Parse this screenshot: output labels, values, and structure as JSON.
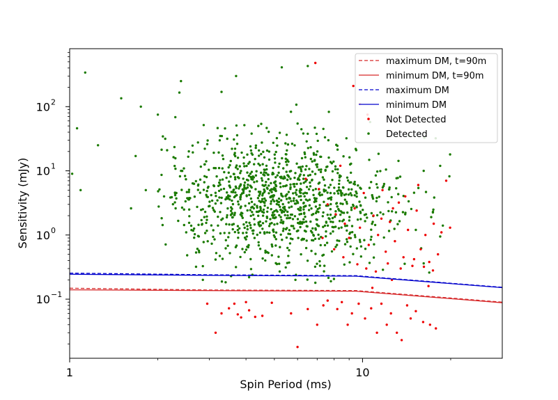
{
  "chart_data": {
    "type": "scatter",
    "xlabel": "Spin Period (ms)",
    "ylabel": "Sensitivity (mJy)",
    "xscale": "log",
    "yscale": "log",
    "xlim": [
      1,
      30
    ],
    "ylim": [
      0.012,
      800
    ],
    "xticks": [
      {
        "value": 1,
        "label": "1"
      },
      {
        "value": 10,
        "label": "10"
      }
    ],
    "yticks": [
      {
        "value": 0.1,
        "base": "10",
        "exp": "−1"
      },
      {
        "value": 1,
        "base": "10",
        "exp": "0"
      },
      {
        "value": 10,
        "base": "10",
        "exp": "1"
      },
      {
        "value": 100,
        "base": "10",
        "exp": "2"
      }
    ],
    "grid": false,
    "legend_position": "top-right",
    "lines": [
      {
        "name": "maximum DM, t=90m",
        "color": "#d62728",
        "dash": true,
        "points": [
          [
            1,
            0.148
          ],
          [
            3,
            0.139
          ],
          [
            9.5,
            0.136
          ],
          [
            30,
            0.09
          ]
        ]
      },
      {
        "name": "minimum DM, t=90m",
        "color": "#d62728",
        "dash": false,
        "points": [
          [
            1,
            0.14
          ],
          [
            3,
            0.136
          ],
          [
            9.5,
            0.133
          ],
          [
            30,
            0.088
          ]
        ]
      },
      {
        "name": "maximum DM",
        "color": "#0000cc",
        "dash": true,
        "points": [
          [
            1,
            0.255
          ],
          [
            3,
            0.24
          ],
          [
            9.5,
            0.232
          ],
          [
            30,
            0.153
          ]
        ]
      },
      {
        "name": "minimum DM",
        "color": "#0000cc",
        "dash": false,
        "points": [
          [
            1,
            0.245
          ],
          [
            3,
            0.235
          ],
          [
            9.5,
            0.228
          ],
          [
            30,
            0.151
          ]
        ]
      }
    ],
    "series": [
      {
        "name": "Not Detected",
        "color": "#ee0000",
        "points": [
          [
            2.95,
            0.085
          ],
          [
            3.15,
            0.03
          ],
          [
            3.3,
            0.06
          ],
          [
            3.5,
            0.072
          ],
          [
            3.65,
            0.085
          ],
          [
            3.75,
            0.058
          ],
          [
            3.85,
            0.052
          ],
          [
            4.0,
            0.09
          ],
          [
            4.1,
            0.067
          ],
          [
            4.3,
            0.053
          ],
          [
            4.55,
            0.055
          ],
          [
            4.9,
            0.088
          ],
          [
            5.7,
            0.06
          ],
          [
            6.0,
            0.018
          ],
          [
            6.5,
            0.07
          ],
          [
            7.0,
            0.04
          ],
          [
            7.35,
            0.08
          ],
          [
            7.6,
            0.095
          ],
          [
            8.2,
            0.07
          ],
          [
            8.5,
            0.09
          ],
          [
            8.9,
            0.04
          ],
          [
            9.2,
            0.06
          ],
          [
            9.7,
            0.085
          ],
          [
            10.2,
            0.05
          ],
          [
            10.7,
            0.072
          ],
          [
            11.2,
            0.03
          ],
          [
            11.6,
            0.085
          ],
          [
            12.1,
            0.04
          ],
          [
            12.5,
            0.06
          ],
          [
            13.1,
            0.03
          ],
          [
            13.6,
            0.023
          ],
          [
            14.2,
            0.08
          ],
          [
            14.6,
            0.05
          ],
          [
            15.2,
            0.065
          ],
          [
            16.1,
            0.044
          ],
          [
            17.0,
            0.04
          ],
          [
            17.8,
            0.035
          ],
          [
            6.9,
            480
          ],
          [
            9.3,
            210
          ],
          [
            9.8,
            110
          ],
          [
            10.4,
            75
          ],
          [
            6.4,
            7.5
          ],
          [
            7.1,
            5.2
          ],
          [
            7.6,
            3.0
          ],
          [
            8.1,
            2.1
          ],
          [
            8.4,
            12.0
          ],
          [
            8.7,
            1.5
          ],
          [
            9.0,
            0.9
          ],
          [
            9.4,
            2.6
          ],
          [
            9.8,
            1.3
          ],
          [
            10.1,
            4.5
          ],
          [
            10.5,
            0.7
          ],
          [
            10.9,
            2.0
          ],
          [
            11.3,
            1.0
          ],
          [
            11.7,
            5.0
          ],
          [
            12.0,
            0.55
          ],
          [
            12.4,
            1.6
          ],
          [
            12.9,
            0.8
          ],
          [
            13.3,
            3.2
          ],
          [
            13.8,
            0.45
          ],
          [
            14.3,
            1.2
          ],
          [
            14.8,
            0.33
          ],
          [
            15.3,
            2.4
          ],
          [
            15.8,
            0.6
          ],
          [
            16.4,
            1.0
          ],
          [
            16.9,
            0.38
          ],
          [
            17.5,
            1.5
          ],
          [
            18.1,
            0.5
          ],
          [
            18.6,
            1.1
          ],
          [
            19.3,
            7.0
          ],
          [
            19.9,
            1.3
          ],
          [
            9.6,
            0.35
          ],
          [
            10.3,
            0.3
          ],
          [
            11.1,
            0.27
          ],
          [
            12.2,
            0.36
          ],
          [
            13.5,
            0.3
          ],
          [
            15.0,
            0.42
          ],
          [
            16.2,
            0.32
          ],
          [
            17.4,
            0.28
          ],
          [
            11.6,
            1.8
          ],
          [
            12.7,
            2.6
          ],
          [
            14.0,
            4.0
          ],
          [
            15.5,
            6.0
          ],
          [
            8.0,
            0.6
          ],
          [
            8.6,
            0.45
          ],
          [
            7.3,
            0.9
          ],
          [
            10.8,
            0.15
          ],
          [
            12.6,
            0.2
          ],
          [
            16.8,
            0.16
          ]
        ]
      },
      {
        "name": "Detected",
        "color": "#1a7a00",
        "points": "generated"
      }
    ]
  },
  "legend": {
    "items": [
      {
        "label": "maximum DM, t=90m",
        "kind": "dashed-line",
        "color": "#d62728"
      },
      {
        "label": "minimum DM, t=90m",
        "kind": "solid-line",
        "color": "#d62728"
      },
      {
        "label": "maximum DM",
        "kind": "dashed-line",
        "color": "#0000cc"
      },
      {
        "label": "minimum DM",
        "kind": "solid-line",
        "color": "#0000cc"
      },
      {
        "label": "Not Detected",
        "kind": "marker",
        "color": "#ee0000"
      },
      {
        "label": "Detected",
        "kind": "marker",
        "color": "#1a7a00"
      }
    ]
  }
}
